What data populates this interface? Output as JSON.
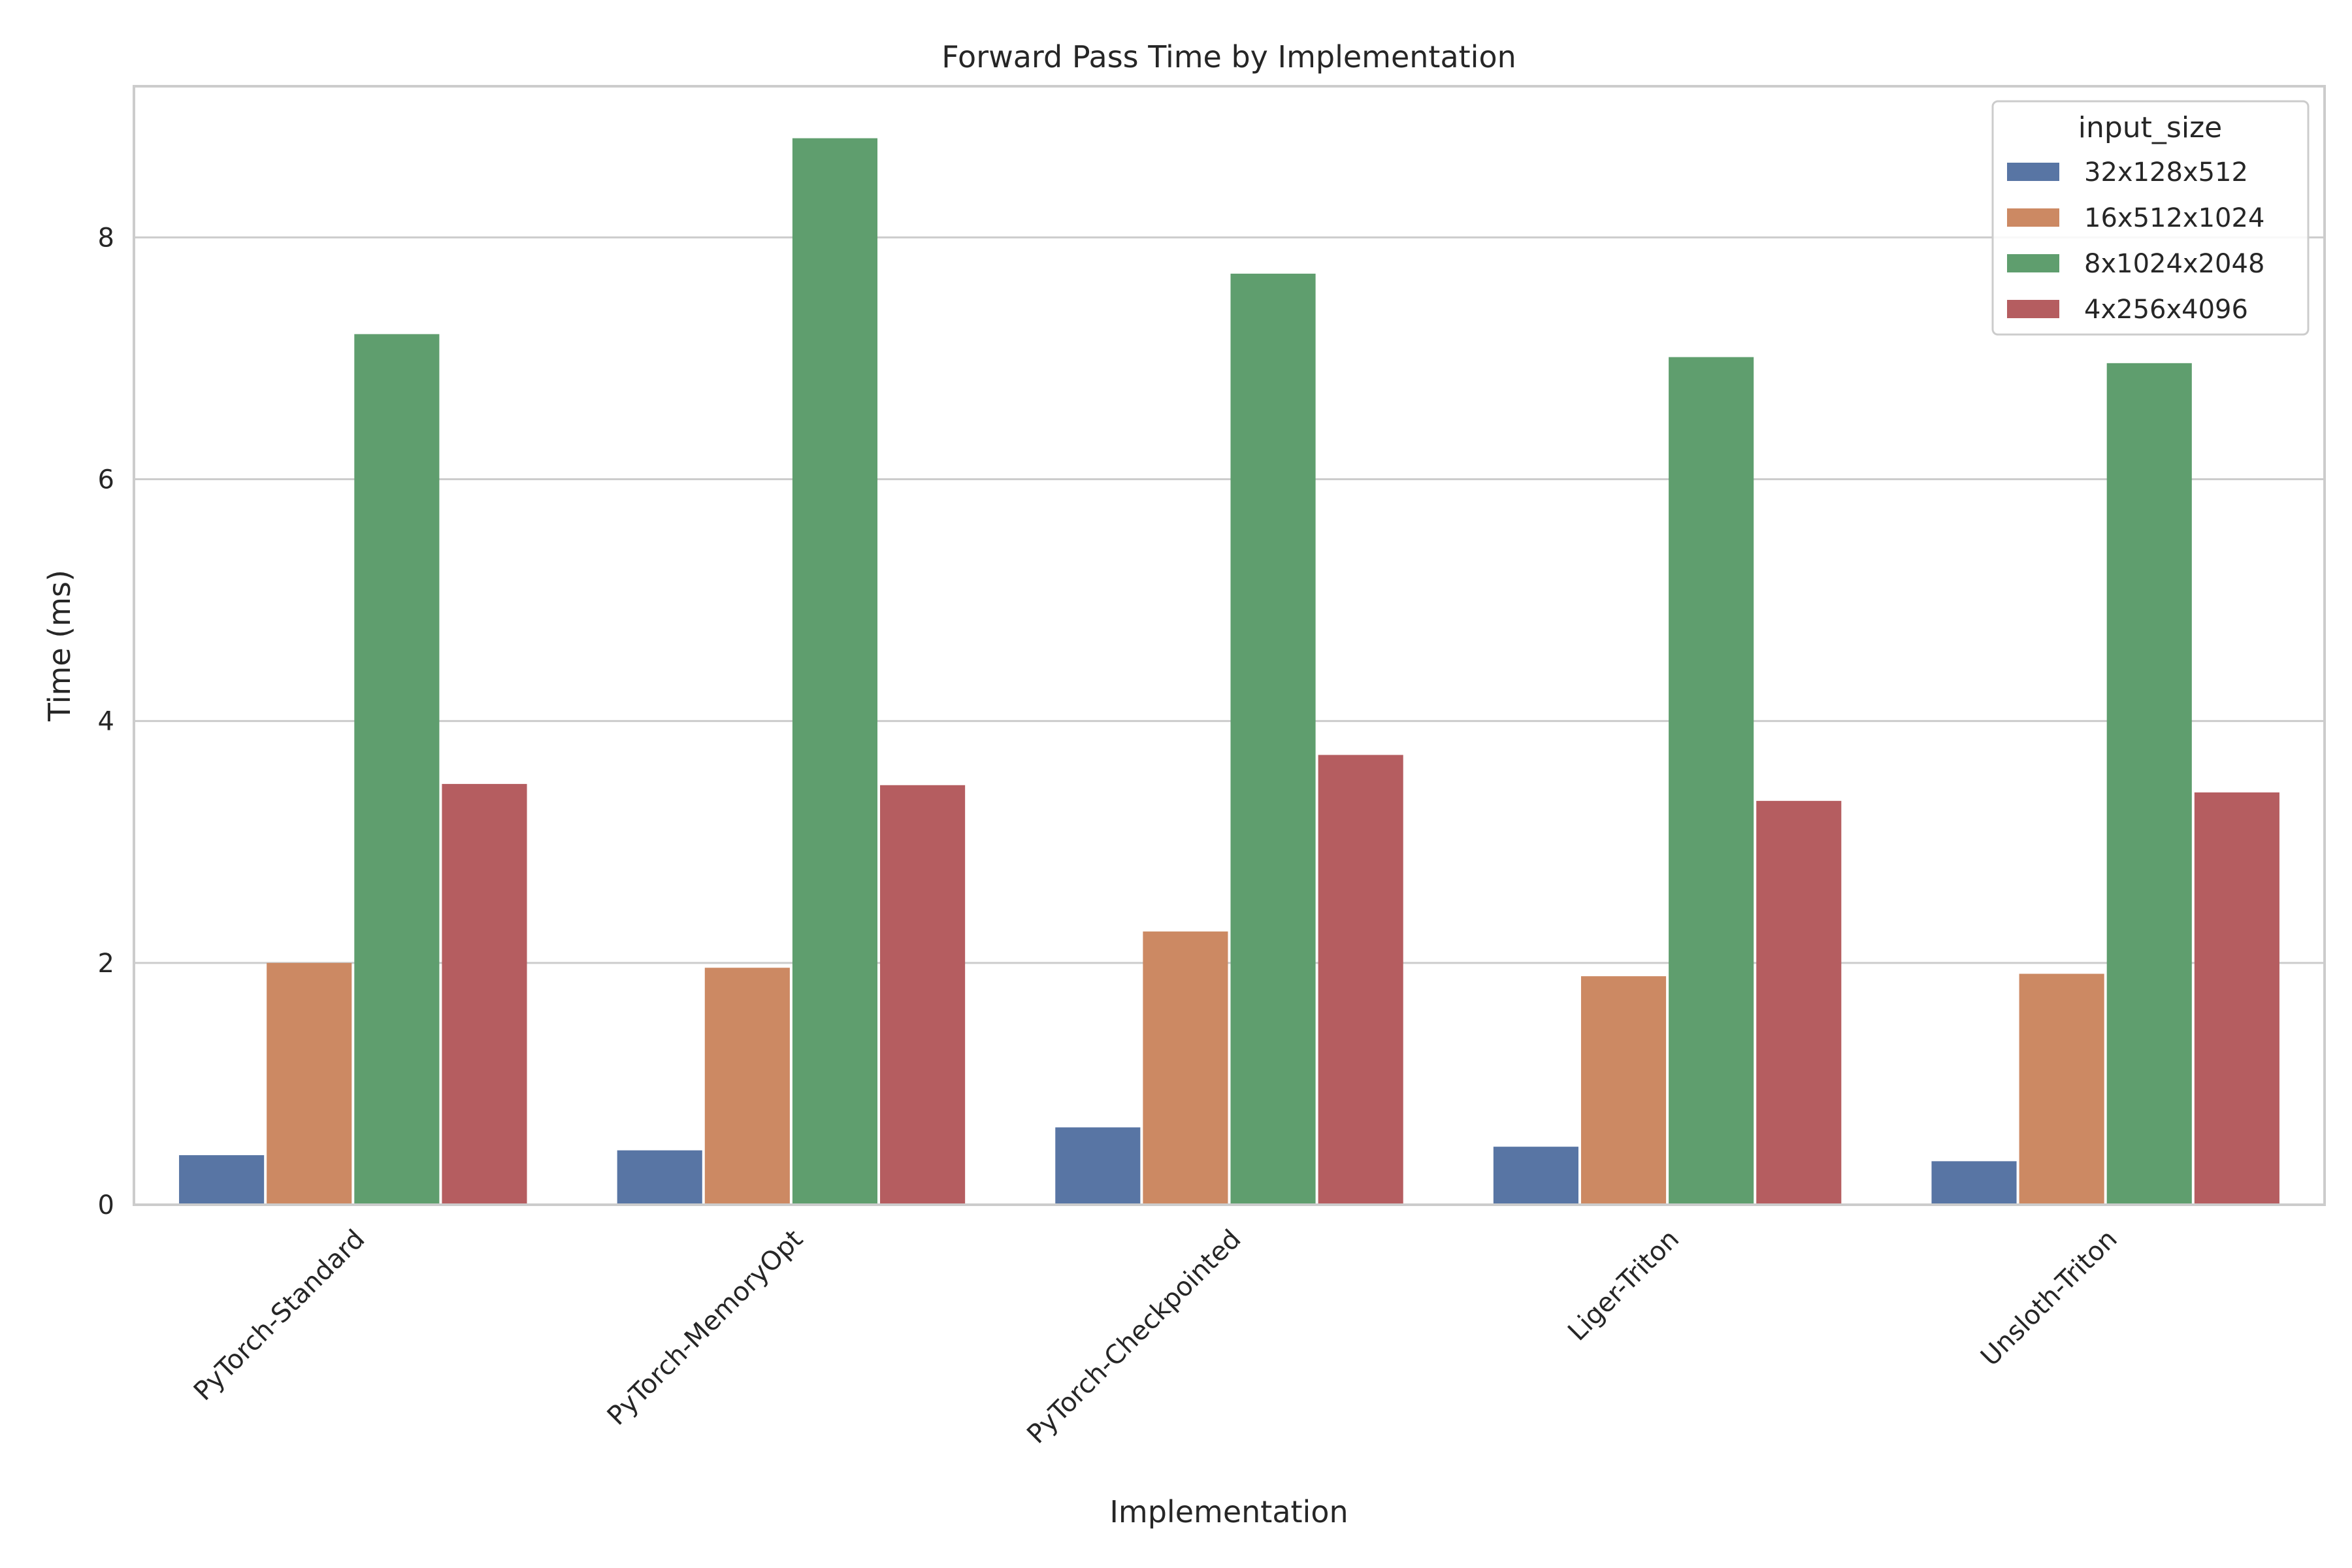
{
  "chart_data": {
    "type": "bar",
    "title": "Forward Pass Time by Implementation",
    "xlabel": "Implementation",
    "ylabel": "Time (ms)",
    "categories": [
      "PyTorch-Standard",
      "PyTorch-MemoryOpt",
      "PyTorch-Checkpointed",
      "Liger-Triton",
      "Unsloth-Triton"
    ],
    "series": [
      {
        "name": "32x128x512",
        "color": "#5875a4",
        "values": [
          0.41,
          0.45,
          0.64,
          0.48,
          0.36
        ]
      },
      {
        "name": "16x512x1024",
        "color": "#cc8963",
        "values": [
          2.0,
          1.96,
          2.26,
          1.89,
          1.91
        ]
      },
      {
        "name": "8x1024x2048",
        "color": "#5f9e6e",
        "values": [
          7.2,
          8.82,
          7.7,
          7.01,
          6.96
        ]
      },
      {
        "name": "4x256x4096",
        "color": "#b55d60",
        "values": [
          3.48,
          3.47,
          3.72,
          3.34,
          3.41
        ]
      }
    ],
    "ylim": [
      0,
      9.25
    ],
    "yticks": [
      0,
      2,
      4,
      6,
      8
    ],
    "grid": true,
    "legend": {
      "title": "input_size",
      "placement": "top-right"
    }
  }
}
